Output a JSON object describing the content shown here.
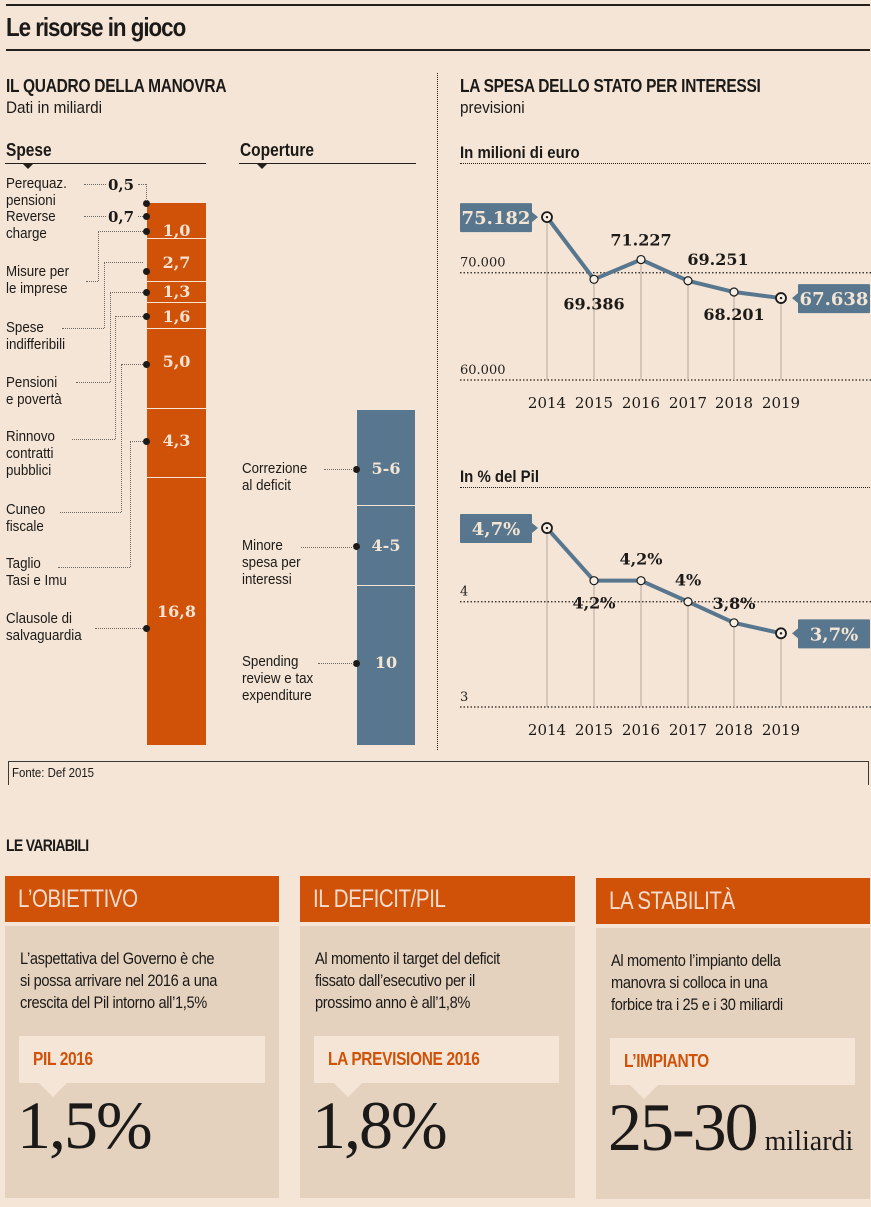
{
  "title": "Le risorse in gioco",
  "left_section": {
    "title": "IL QUADRO DELLA MANOVRA",
    "subtitle": "Dati in miliardi",
    "spese_header": "Spese",
    "coperture_header": "Coperture"
  },
  "right_section": {
    "title": "LA SPESA DELLO STATO PER INTERESSI",
    "subtitle": "previsioni"
  },
  "source": "Fonte: Def 2015",
  "colors": {
    "spese": "#cf5208",
    "coperture": "#58778f",
    "line": "#58778f",
    "background": "#f4e5d6",
    "card_body": "#e4d2bf"
  },
  "chart_data": [
    {
      "type": "bar",
      "stacked": true,
      "name": "Spese",
      "unit": "miliardi",
      "categories": [
        "Perequaz. pensioni",
        "Reverse charge",
        "Misure per le imprese",
        "Spese indifferibili",
        "Pensioni e povertà",
        "Rinnovo contratti pubblici",
        "Cuneo fiscale",
        "Taglio Tasi e Imu",
        "Clausole di salvaguardia"
      ],
      "labels": [
        [
          "Perequaz.",
          "pensioni"
        ],
        [
          "Reverse",
          "charge"
        ],
        [
          "Misure per",
          "le imprese"
        ],
        [
          "Spese",
          "indifferibili"
        ],
        [
          "Pensioni",
          "e povertà"
        ],
        [
          "Rinnovo",
          "contratti",
          "pubblici"
        ],
        [
          "Cuneo",
          "fiscale"
        ],
        [
          "Taglio",
          "Tasi e Imu"
        ],
        [
          "Clausole di",
          "salvaguardia"
        ]
      ],
      "values": [
        0.5,
        0.7,
        1.0,
        2.7,
        1.3,
        1.6,
        5.0,
        4.3,
        16.8
      ],
      "value_labels": [
        "0,5",
        "0,7",
        "1,0",
        "2,7",
        "1,3",
        "1,6",
        "5,0",
        "4,3",
        "16,8"
      ]
    },
    {
      "type": "bar",
      "stacked": true,
      "name": "Coperture",
      "unit": "miliardi",
      "categories": [
        "Correzione al deficit",
        "Minore spesa per interessi",
        "Spending review e tax expenditure"
      ],
      "labels": [
        [
          "Correzione",
          "al deficit"
        ],
        [
          "Minore",
          "spesa per",
          "interessi"
        ],
        [
          "Spending",
          "review e tax",
          "expenditure"
        ]
      ],
      "values": [
        [
          5,
          6
        ],
        [
          4,
          5
        ],
        [
          10,
          10
        ]
      ],
      "value_labels": [
        "5-6",
        "4-5",
        "10"
      ]
    },
    {
      "type": "line",
      "title": "In milioni di euro",
      "x": [
        2014,
        2015,
        2016,
        2017,
        2018,
        2019
      ],
      "x_labels": [
        "2014",
        "2015",
        "2016",
        "2017",
        "2018",
        "2019"
      ],
      "y": [
        75182,
        69386,
        71227,
        69251,
        68201,
        67638
      ],
      "value_labels": [
        "75.182",
        "69.386",
        "71.227",
        "69.251",
        "68.201",
        "67.638"
      ],
      "yticks": [
        60000,
        70000
      ],
      "ytick_labels": [
        "60.000",
        "70.000"
      ],
      "ylim": [
        60000,
        76500
      ],
      "grid": true
    },
    {
      "type": "line",
      "title": "In % del Pil",
      "x": [
        2014,
        2015,
        2016,
        2017,
        2018,
        2019
      ],
      "x_labels": [
        "2014",
        "2015",
        "2016",
        "2017",
        "2018",
        "2019"
      ],
      "y": [
        4.7,
        4.2,
        4.2,
        4.0,
        3.8,
        3.7
      ],
      "value_labels": [
        "4,7%",
        "4,2%",
        "4,2%",
        "4%",
        "3,8%",
        "3,7%"
      ],
      "yticks": [
        3,
        4
      ],
      "ytick_labels": [
        "3",
        "4"
      ],
      "ylim": [
        3,
        4.9
      ],
      "grid": true
    }
  ],
  "variabili": {
    "title": "LE VARIABILI",
    "cards": [
      {
        "header": "L’OBIETTIVO",
        "text": [
          "L’aspettativa del Governo è che",
          "si possa arrivare nel 2016 a una",
          "crescita del Pil intorno all’1,5%"
        ],
        "callout": "PIL 2016",
        "value": "1,5%",
        "unit": ""
      },
      {
        "header": "IL DEFICIT/PIL",
        "text": [
          "Al momento il target del deficit",
          "fissato dall’esecutivo per il",
          "prossimo anno è all’1,8%"
        ],
        "callout": "LA PREVISIONE 2016",
        "value": "1,8%",
        "unit": ""
      },
      {
        "header": "LA STABILITÀ",
        "text": [
          "Al momento l’impianto della",
          "manovra si colloca in una",
          "forbice tra i 25 e i 30 miliardi"
        ],
        "callout": "L’IMPIANTO",
        "value": "25-30",
        "unit": "miliardi"
      }
    ]
  }
}
